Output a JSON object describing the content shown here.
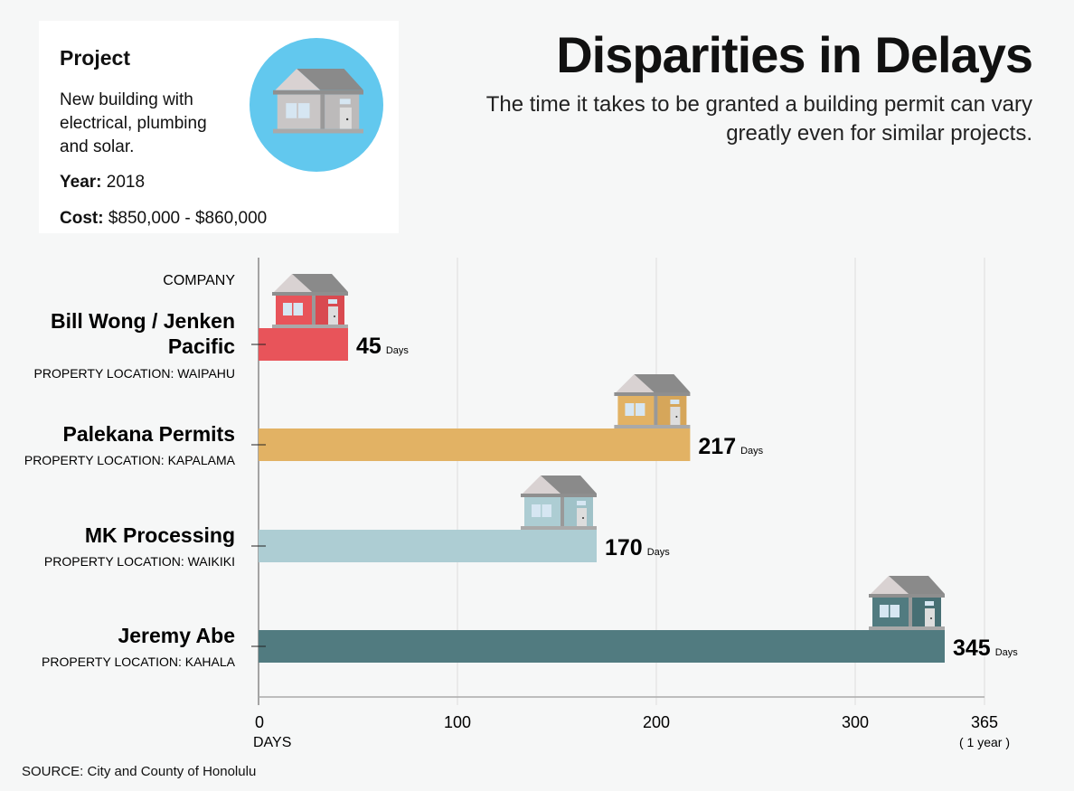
{
  "project_card": {
    "heading": "Project",
    "description": "New building with electrical, plumbing and solar.",
    "year_label": "Year:",
    "year": "2018",
    "cost_label": "Cost:",
    "cost": "$850,000 - $860,000",
    "icon": "house-icon",
    "circle_color": "#62c8ee"
  },
  "title": "Disparities in Delays",
  "subtitle": "The time it takes to be granted a building permit can vary greatly even for similar projects.",
  "source": "SOURCE: City and County of Honolulu",
  "chart_data": {
    "type": "bar",
    "orientation": "horizontal",
    "category_header": "COMPANY",
    "categories": [
      "Bill Wong / Jenken Pacific",
      "Palekana Permits",
      "MK Processing",
      "Jeremy Abe"
    ],
    "locations": [
      "PROPERTY LOCATION: WAIPAHU",
      "PROPERTY LOCATION: KAPALAMA",
      "PROPERTY LOCATION: WAIKIKI",
      "PROPERTY LOCATION: KAHALA"
    ],
    "values": [
      45,
      217,
      170,
      345
    ],
    "value_unit": "Days",
    "colors": [
      "#e8545a",
      "#e2b264",
      "#adcdd3",
      "#517b80"
    ],
    "xlim": [
      0,
      365
    ],
    "xticks": [
      "0",
      "100",
      "200",
      "300",
      "365"
    ],
    "xtick_values": [
      0,
      100,
      200,
      300,
      365
    ],
    "xlabel": "DAYS",
    "last_tick_note": "( 1 year )",
    "grid": true
  }
}
